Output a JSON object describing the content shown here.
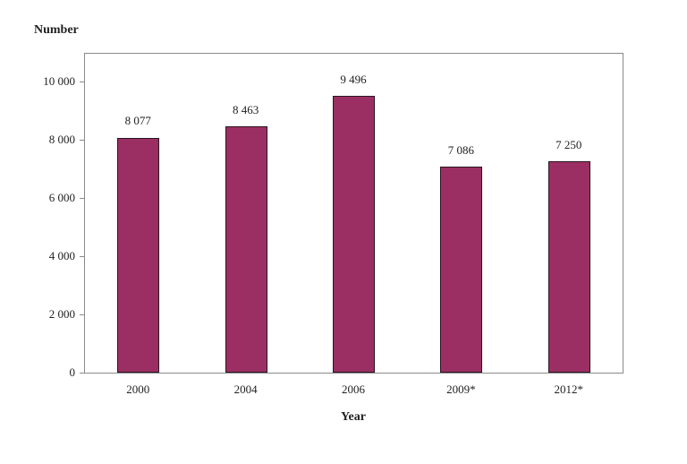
{
  "chart_data": {
    "type": "bar",
    "title": "",
    "xlabel": "Year",
    "ylabel": "Number",
    "categories": [
      "2000",
      "2004",
      "2006",
      "2009*",
      "2012*"
    ],
    "values": [
      8077,
      8463,
      9496,
      7086,
      7250
    ],
    "value_labels": [
      "8 077",
      "8 463",
      "9 496",
      "7 086",
      "7 250"
    ],
    "ylim": [
      0,
      11000
    ],
    "yticks": [
      0,
      2000,
      4000,
      6000,
      8000,
      10000
    ],
    "ytick_labels": [
      "0",
      "2 000",
      "4 000",
      "6 000",
      "8 000",
      "10 000"
    ],
    "grid": false,
    "legend": null,
    "bar_color": "#9b2f63"
  }
}
